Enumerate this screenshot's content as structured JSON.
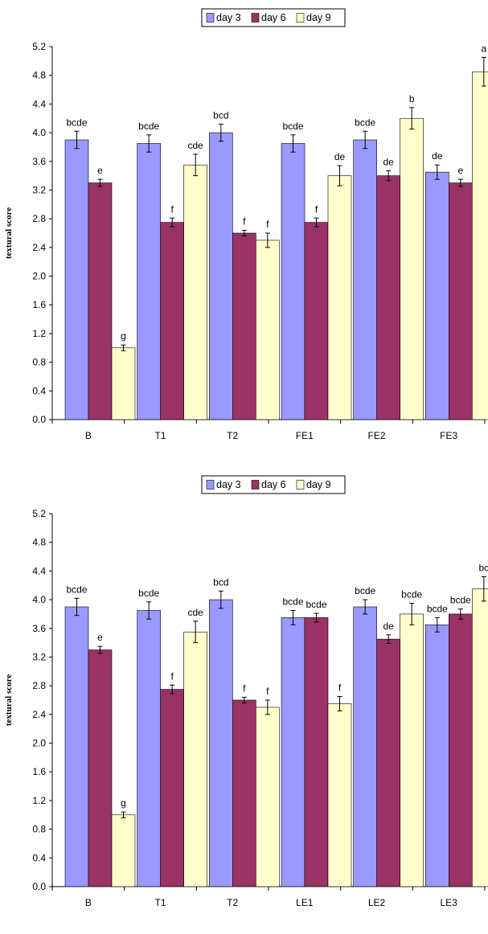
{
  "colors": {
    "day 3": "#9999FF",
    "day 6": "#993366",
    "day 9": "#FFFFCC"
  },
  "chart_data": [
    {
      "type": "bar",
      "categories": [
        "B",
        "T1",
        "T2",
        "FE1",
        "FE2",
        "FE3"
      ],
      "ylabel": "textural score",
      "xlabel": "",
      "title": "",
      "ylim": [
        0,
        5.2
      ],
      "yticks": [
        "0.0",
        "0.4",
        "0.8",
        "1.2",
        "1.6",
        "2.0",
        "2.4",
        "2.8",
        "3.2",
        "3.6",
        "4.0",
        "4.4",
        "4.8",
        "5.2"
      ],
      "legend_position": "top-center",
      "grid": false,
      "series": [
        {
          "name": "day 3",
          "values": [
            3.9,
            3.85,
            4.0,
            3.85,
            3.9,
            3.45
          ],
          "errors": [
            0.12,
            0.12,
            0.12,
            0.12,
            0.12,
            0.1
          ],
          "labels": [
            "bcde",
            "bcde",
            "bcd",
            "bcde",
            "bcde",
            "de"
          ]
        },
        {
          "name": "day 6",
          "values": [
            3.3,
            2.75,
            2.6,
            2.75,
            3.4,
            3.3
          ],
          "errors": [
            0.05,
            0.06,
            0.04,
            0.06,
            0.07,
            0.05
          ],
          "labels": [
            "e",
            "f",
            "f",
            "f",
            "de",
            "e"
          ]
        },
        {
          "name": "day 9",
          "values": [
            1.0,
            3.55,
            2.5,
            3.4,
            4.2,
            4.85
          ],
          "errors": [
            0.04,
            0.15,
            0.1,
            0.14,
            0.15,
            0.2
          ],
          "labels": [
            "g",
            "cde",
            "f",
            "de",
            "b",
            "a"
          ]
        }
      ]
    },
    {
      "type": "bar",
      "categories": [
        "B",
        "T1",
        "T2",
        "LE1",
        "LE2",
        "LE3"
      ],
      "ylabel": "textural score",
      "xlabel": "",
      "title": "",
      "ylim": [
        0,
        5.2
      ],
      "yticks": [
        "0.0",
        "0.4",
        "0.8",
        "1.2",
        "1.6",
        "2.0",
        "2.4",
        "2.8",
        "3.2",
        "3.6",
        "4.0",
        "4.4",
        "4.8",
        "5.2"
      ],
      "legend_position": "top-center",
      "grid": false,
      "series": [
        {
          "name": "day 3",
          "values": [
            3.9,
            3.85,
            4.0,
            3.75,
            3.9,
            3.65
          ],
          "errors": [
            0.12,
            0.12,
            0.12,
            0.1,
            0.1,
            0.1
          ],
          "labels": [
            "bcde",
            "bcde",
            "bcd",
            "bcde",
            "bcde",
            "bcde"
          ]
        },
        {
          "name": "day 6",
          "values": [
            3.3,
            2.75,
            2.6,
            3.75,
            3.45,
            3.8
          ],
          "errors": [
            0.05,
            0.06,
            0.04,
            0.06,
            0.06,
            0.07
          ],
          "labels": [
            "e",
            "f",
            "f",
            "bcde",
            "de",
            "bcde"
          ]
        },
        {
          "name": "day 9",
          "values": [
            1.0,
            3.55,
            2.5,
            2.55,
            3.8,
            4.15
          ],
          "errors": [
            0.04,
            0.15,
            0.1,
            0.1,
            0.15,
            0.17
          ],
          "labels": [
            "g",
            "cde",
            "f",
            "f",
            "bcde",
            "bc"
          ]
        }
      ]
    }
  ]
}
